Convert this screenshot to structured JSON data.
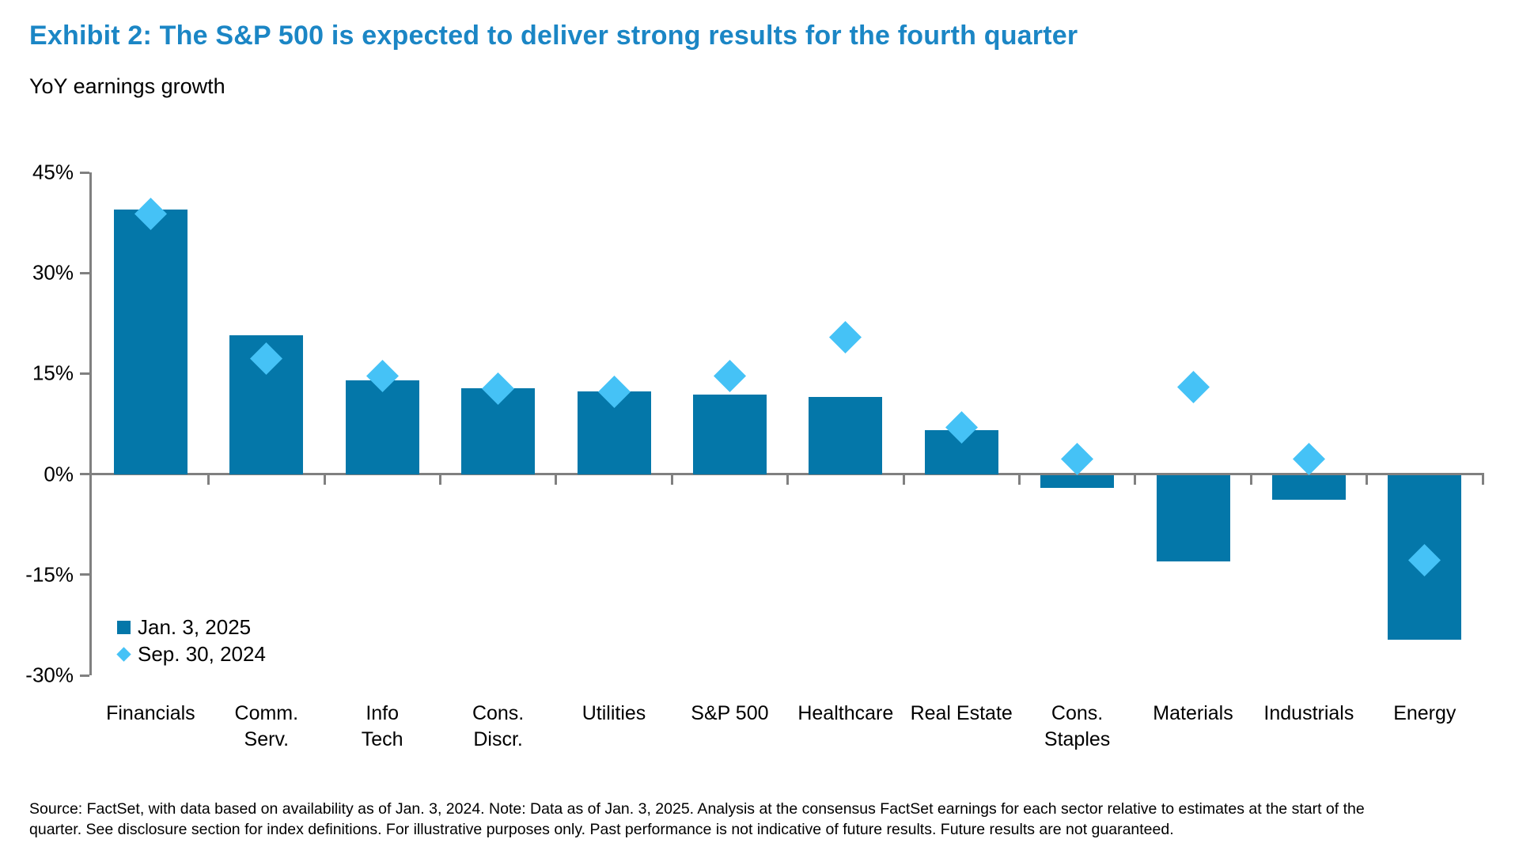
{
  "header": {
    "title": "Exhibit 2: The S&P 500 is expected to deliver strong results for the fourth quarter",
    "subtitle": "YoY earnings growth"
  },
  "footer": {
    "text": "Source: FactSet, with data based on availability as of Jan. 3, 2024. Note: Data as of Jan. 3, 2025. Analysis at the consensus FactSet earnings for each sector relative to estimates at the start of the\nquarter. See disclosure section for index definitions. For illustrative purposes only. Past performance is not indicative of future results. Future results are not guaranteed."
  },
  "colors": {
    "title": "#1B86C5",
    "bar": "#0477A9",
    "diamond": "#45C2F6",
    "axis": "#808080",
    "text": "#000000"
  },
  "chart_data": {
    "type": "bar",
    "title": "Exhibit 2: The S&P 500 is expected to deliver strong results for the fourth quarter",
    "subtitle": "YoY earnings growth",
    "ylabel": "",
    "xlabel": "",
    "ylim": [
      -30,
      45
    ],
    "grid": false,
    "legend_position": "bottom-left-inside",
    "yticks": [
      45,
      30,
      15,
      0,
      -15,
      -30
    ],
    "ytick_labels": [
      "45%",
      "30%",
      "15%",
      "0%",
      "-15%",
      "-30%"
    ],
    "categories": [
      "Financials",
      "Comm.\nServ.",
      "Info\nTech",
      "Cons.\nDiscr.",
      "Utilities",
      "S&P 500",
      "Healthcare",
      "Real Estate",
      "Cons.\nStaples",
      "Materials",
      "Industrials",
      "Energy"
    ],
    "series": [
      {
        "name": "Jan. 3, 2025",
        "type": "bar",
        "values": [
          39.5,
          20.7,
          14.0,
          12.8,
          12.3,
          11.9,
          11.5,
          6.5,
          -2.0,
          -13.0,
          -3.8,
          -24.7
        ]
      },
      {
        "name": "Sep. 30, 2024",
        "type": "scatter-diamond",
        "values": [
          38.8,
          17.2,
          14.6,
          12.7,
          12.3,
          14.6,
          20.4,
          7.0,
          2.2,
          13.0,
          2.2,
          -12.8
        ]
      }
    ]
  }
}
